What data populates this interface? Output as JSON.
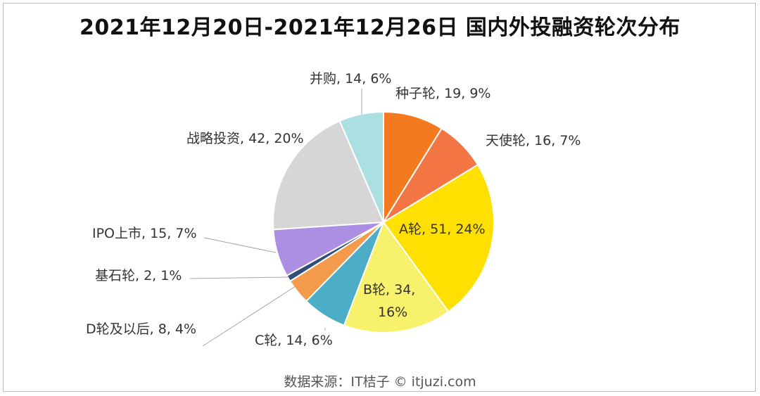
{
  "chart_data": {
    "type": "pie",
    "title": "2021年12月20日-2021年12月26日 国内外投融资轮次分布",
    "source": "数据来源：IT桔子 © itjuzi.com",
    "slices": [
      {
        "label": "种子轮, 19, 9%",
        "category": "种子轮",
        "value": 19,
        "percent": 9,
        "color": "#F47A1F"
      },
      {
        "label": "天使轮, 16, 7%",
        "category": "天使轮",
        "value": 16,
        "percent": 7,
        "color": "#F37543"
      },
      {
        "label": "A轮, 51, 24%",
        "category": "A轮",
        "value": 51,
        "percent": 24,
        "color": "#FFE000"
      },
      {
        "label_lines": [
          "B轮, 34,",
          "16%"
        ],
        "category": "B轮",
        "value": 34,
        "percent": 16,
        "color": "#F7F16B"
      },
      {
        "label": "C轮, 14, 6%",
        "category": "C轮",
        "value": 14,
        "percent": 6,
        "color": "#4BADC6"
      },
      {
        "label": "D轮及以后, 8, 4%",
        "category": "D轮及以后",
        "value": 8,
        "percent": 4,
        "color": "#F49A4B"
      },
      {
        "label": "基石轮, 2, 1%",
        "category": "基石轮",
        "value": 2,
        "percent": 1,
        "color": "#2F4F7A"
      },
      {
        "label": "IPO上市, 15, 7%",
        "category": "IPO上市",
        "value": 15,
        "percent": 7,
        "color": "#AC8FE2"
      },
      {
        "label": "战略投资, 42, 20%",
        "category": "战略投资",
        "value": 42,
        "percent": 20,
        "color": "#D6D6D6"
      },
      {
        "label": "并购, 14, 6%",
        "category": "并购",
        "value": 14,
        "percent": 6,
        "color": "#ABE0E3"
      }
    ]
  }
}
